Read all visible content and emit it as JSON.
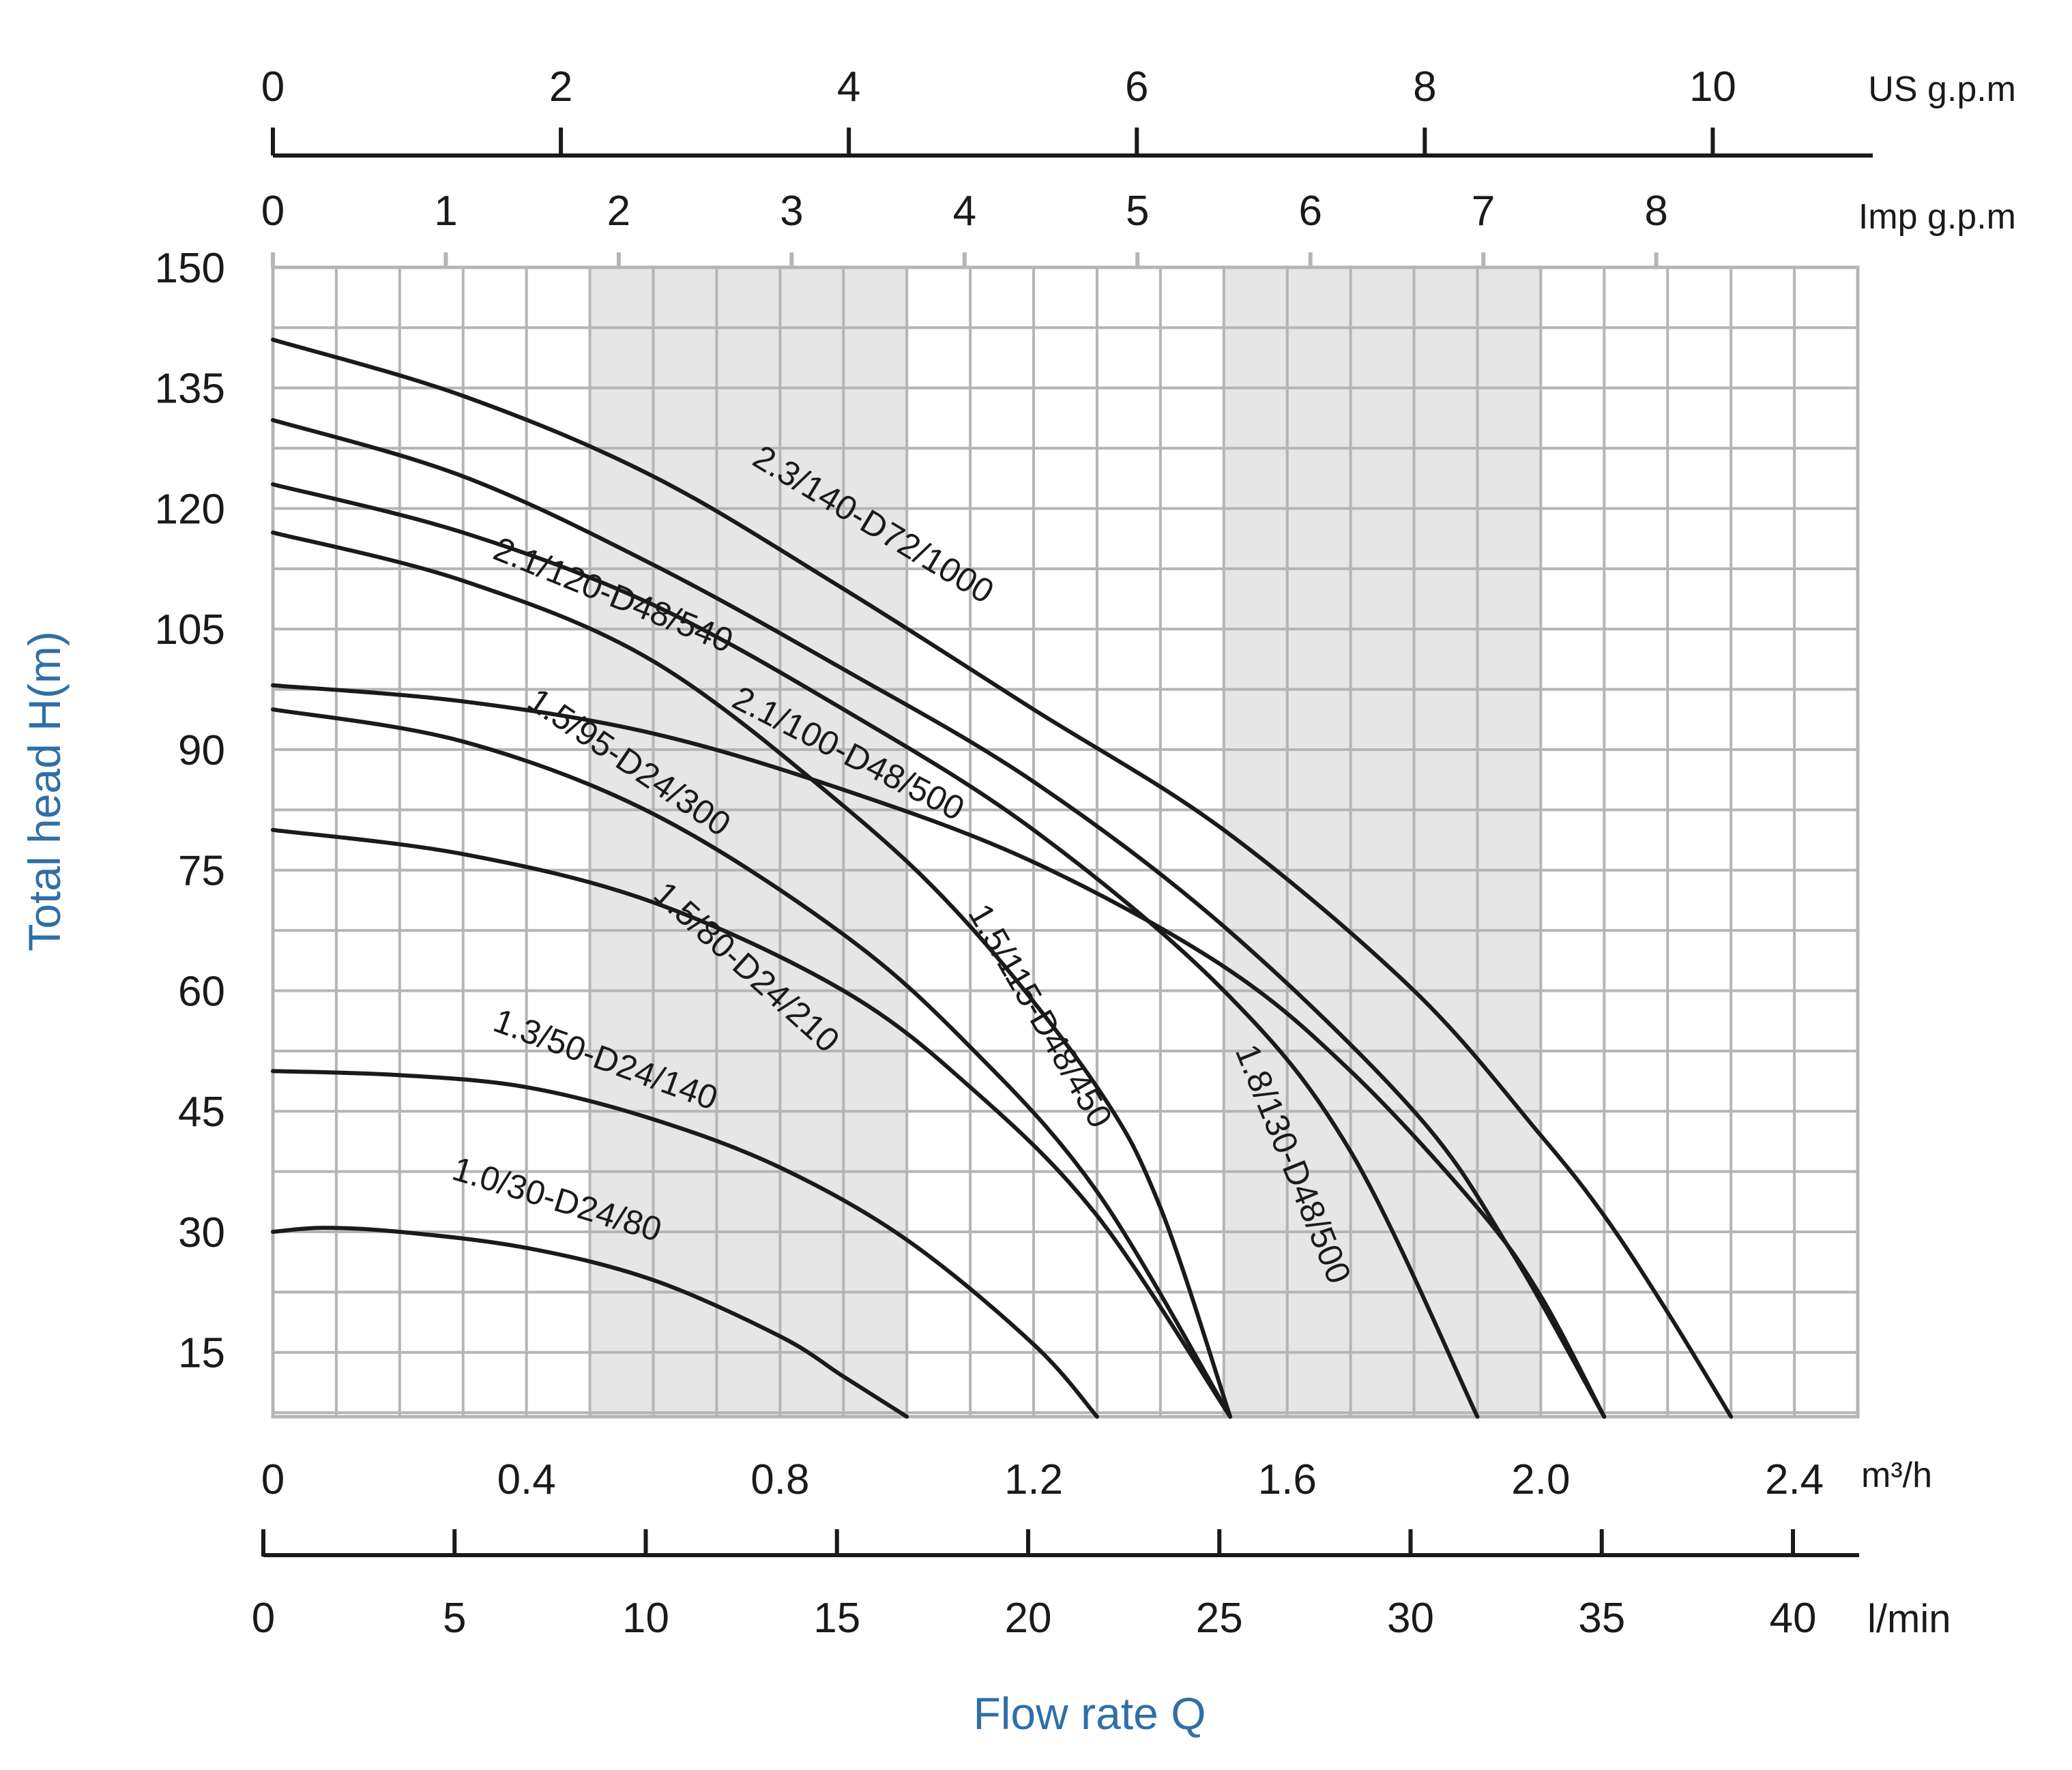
{
  "colors": {
    "curve": "#1a1a1a",
    "grid": "#b5b5b5",
    "shade": "#e6e6e6",
    "axis_title": "#2f6fa8",
    "text": "#1a1a1a"
  },
  "axis_titles": {
    "y": "Total head H(m)",
    "x": "Flow rate Q"
  },
  "chart_data": {
    "type": "line",
    "xlabel": "Flow rate Q",
    "ylabel": "Total head H(m)",
    "x_unit": "m³/h",
    "xlim": [
      0,
      2.5
    ],
    "ylim": [
      7,
      150
    ],
    "grid": true,
    "shaded_bands_m3h": [
      [
        0.5,
        1.0
      ],
      [
        1.5,
        2.0
      ]
    ],
    "y_ticks": [
      "150",
      "135",
      "120",
      "105",
      "90",
      "75",
      "60",
      "45",
      "30",
      "15"
    ],
    "x_ticks_m3h": [
      "0",
      "0.4",
      "0.8",
      "1.2",
      "1.6",
      "2.0",
      "2.4"
    ],
    "x_unit_m3h": "m³/h",
    "x_ticks_lmin": [
      "0",
      "5",
      "10",
      "15",
      "20",
      "25",
      "30",
      "35",
      "40"
    ],
    "x_unit_lmin": "l/min",
    "x_ticks_imp": [
      "0",
      "1",
      "2",
      "3",
      "4",
      "5",
      "6",
      "7",
      "8"
    ],
    "x_unit_imp": "Imp g.p.m",
    "x_ticks_us": [
      "0",
      "2",
      "4",
      "6",
      "8",
      "10"
    ],
    "x_unit_us": "US g.p.m",
    "series": [
      {
        "name": "2.3/140-D72/1000",
        "x": [
          0,
          0.3,
          0.6,
          0.9,
          1.2,
          1.5,
          1.8,
          2.0,
          2.1,
          2.2,
          2.3
        ],
        "y": [
          141,
          134,
          124,
          110,
          95,
          80,
          60,
          42,
          32,
          20,
          7
        ]
      },
      {
        "name": "2.1/120-D48/540",
        "x": [
          0,
          0.3,
          0.6,
          0.9,
          1.2,
          1.5,
          1.8,
          1.95,
          2.1
        ],
        "y": [
          131,
          124,
          113,
          100,
          86,
          68,
          45,
          28,
          7
        ]
      },
      {
        "name": "2.1/100-D48/500",
        "x": [
          0,
          0.3,
          0.6,
          0.9,
          1.2,
          1.5,
          1.7,
          1.9,
          2.0,
          2.1
        ],
        "y": [
          98,
          96,
          92,
          85,
          76,
          63,
          50,
          33,
          22,
          7
        ]
      },
      {
        "name": "1.8/130-D48/500",
        "x": [
          0,
          0.3,
          0.6,
          0.9,
          1.2,
          1.5,
          1.7,
          1.9
        ],
        "y": [
          123,
          117,
          108,
          95,
          80,
          60,
          40,
          7
        ]
      },
      {
        "name": "1.5/115-D48/450",
        "x": [
          0,
          0.3,
          0.6,
          0.9,
          1.1,
          1.3,
          1.4,
          1.51
        ],
        "y": [
          117,
          111,
          101,
          83,
          68,
          48,
          33,
          7
        ]
      },
      {
        "name": "1.5/95-D24/300",
        "x": [
          0,
          0.3,
          0.6,
          0.9,
          1.1,
          1.3,
          1.51
        ],
        "y": [
          95,
          91,
          82,
          67,
          53,
          35,
          7
        ]
      },
      {
        "name": "1.5/80-D24/210",
        "x": [
          0,
          0.3,
          0.6,
          0.9,
          1.1,
          1.3,
          1.51
        ],
        "y": [
          80,
          77,
          71,
          60,
          48,
          32,
          7
        ]
      },
      {
        "name": "1.3/50-D24/140",
        "x": [
          0,
          0.2,
          0.4,
          0.6,
          0.8,
          1.0,
          1.2,
          1.3
        ],
        "y": [
          50,
          49.5,
          48,
          44,
          38,
          29,
          16,
          7
        ]
      },
      {
        "name": "1.0/30-D24/80",
        "x": [
          0,
          0.08,
          0.2,
          0.4,
          0.6,
          0.8,
          0.9,
          1.0
        ],
        "y": [
          30,
          30.5,
          30,
          28,
          24,
          17,
          12,
          7
        ]
      }
    ]
  }
}
